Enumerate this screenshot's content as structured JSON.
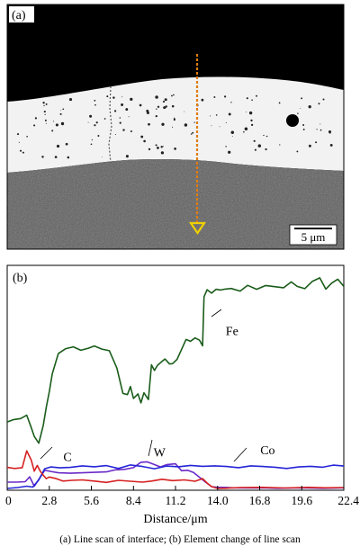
{
  "panel_a": {
    "label": "(a)",
    "scale_bar_label": "5 μm",
    "colors": {
      "line": "#e07c10",
      "marker": "#f0d000"
    }
  },
  "panel_b": {
    "label": "(b)"
  },
  "caption": "(a)   Line scan of interface; (b) Element change of line scan",
  "chart_data": {
    "type": "line",
    "xlabel": "Distance/μm",
    "ylabel": "",
    "xlim": [
      0,
      22.4
    ],
    "ylim": [
      0,
      100
    ],
    "x_ticks": [
      "0",
      "2.8",
      "5.6",
      "8.4",
      "11.2",
      "14.0",
      "16.8",
      "19.6",
      "22.4"
    ],
    "x_tick_values": [
      0,
      2.8,
      5.6,
      8.4,
      11.2,
      14.0,
      16.8,
      19.6,
      22.4
    ],
    "grid": false,
    "series": [
      {
        "name": "Fe",
        "color": "#1a5c1a",
        "label_at": [
          14.3,
          71.3
        ],
        "x": [
          0.0,
          0.4,
          0.9,
          1.3,
          1.6,
          1.8,
          2.1,
          2.4,
          2.6,
          2.8,
          3.0,
          3.4,
          3.9,
          4.4,
          4.9,
          5.4,
          5.8,
          6.3,
          6.8,
          7.3,
          7.7,
          8.0,
          8.2,
          8.4,
          8.7,
          8.9,
          9.1,
          9.4,
          9.6,
          9.8,
          10.0,
          10.3,
          10.5,
          10.8,
          11.0,
          11.3,
          11.6,
          11.9,
          12.2,
          12.5,
          12.8,
          13.0,
          13.1,
          13.3,
          13.6,
          13.9,
          14.2,
          14.5,
          14.9,
          15.5,
          16.0,
          16.6,
          17.2,
          17.8,
          18.4,
          18.9,
          19.3,
          19.8,
          20.3,
          20.8,
          21.2,
          21.6,
          22.0,
          22.4
        ],
        "y": [
          30.5,
          31.5,
          32,
          33.5,
          28,
          24,
          21,
          29,
          37,
          44,
          52,
          61,
          63.2,
          64,
          62.5,
          63.4,
          64.4,
          63,
          62.3,
          54.5,
          43.2,
          42.7,
          46.3,
          41,
          43,
          39,
          43.5,
          40.5,
          56,
          53.5,
          55.8,
          57.5,
          58.6,
          56.4,
          56.5,
          58.4,
          62.8,
          67.3,
          66.5,
          68,
          67,
          64.5,
          86.4,
          89.5,
          88,
          89.7,
          89.4,
          89.8,
          90.1,
          88.9,
          91.5,
          89.7,
          91.4,
          90.9,
          90.4,
          93,
          91,
          90,
          93.2,
          94.8,
          89.8,
          92.5,
          94.2,
          91
        ]
      },
      {
        "name": "W",
        "color": "#6a2ac8",
        "label_at": [
          9.5,
          17.1
        ],
        "x": [
          0.0,
          0.6,
          1.2,
          1.5,
          1.8,
          2.1,
          2.5,
          2.9,
          3.4,
          4.2,
          5.0,
          5.8,
          6.6,
          7.2,
          7.8,
          8.4,
          8.9,
          9.3,
          9.7,
          10.2,
          10.6,
          11.2,
          11.6,
          12.0,
          12.4,
          12.8,
          13.2,
          13.6,
          14.0,
          14.5,
          15.0,
          16.0,
          17.0,
          18.0,
          19.0,
          20.0,
          21.0,
          22.4
        ],
        "y": [
          3.6,
          3.6,
          3.8,
          6,
          1.8,
          4.8,
          8.9,
          8.4,
          7.8,
          7.6,
          7.8,
          8,
          8.2,
          9.1,
          9.3,
          10.1,
          12.5,
          12.7,
          11.7,
          10.4,
          11.4,
          11.8,
          8.7,
          8.9,
          7.9,
          5.8,
          3.6,
          1.6,
          1.3,
          1.3,
          1.1,
          1.0,
          1.1,
          0.9,
          1.0,
          1.0,
          0.9,
          1.1
        ]
      },
      {
        "name": "Co",
        "color": "#2424d8",
        "label_at": [
          16.6,
          18.0
        ],
        "x": [
          0.0,
          0.7,
          1.3,
          1.7,
          2.1,
          2.5,
          2.9,
          3.5,
          4.2,
          5.0,
          5.8,
          6.6,
          7.4,
          8.2,
          9.0,
          9.8,
          10.6,
          11.4,
          12.2,
          13.0,
          13.8,
          14.6,
          15.4,
          16.2,
          17.0,
          17.8,
          18.6,
          19.4,
          20.2,
          21.0,
          21.7,
          22.4
        ],
        "y": [
          0.8,
          1.2,
          1.8,
          1.4,
          4.6,
          9.6,
          10.4,
          10,
          10.2,
          10.9,
          10.5,
          11,
          9.7,
          11.3,
          10.6,
          9.6,
          10.8,
          10.5,
          11.1,
          10.7,
          10.9,
          10.6,
          10.1,
          10.9,
          10.6,
          10.3,
          9.7,
          10.4,
          10.7,
          10.3,
          11.2,
          10.8
        ]
      },
      {
        "name": "C",
        "color": "#d62020",
        "label_at": [
          3.5,
          15.0
        ],
        "x": [
          0.0,
          0.5,
          1.0,
          1.3,
          1.6,
          1.8,
          2.0,
          2.2,
          2.4,
          2.6,
          2.8,
          3.2,
          3.7,
          4.3,
          5.0,
          5.8,
          6.6,
          7.4,
          8.2,
          9.0,
          9.6,
          10.3,
          11.0,
          11.8,
          12.5,
          13.0,
          13.3,
          13.6,
          14.0,
          14.5,
          15.5,
          17.0,
          18.5,
          20.0,
          21.2,
          22.4
        ],
        "y": [
          10.2,
          9.7,
          10.1,
          17.6,
          13.5,
          8.5,
          11.1,
          8.5,
          6.7,
          5.2,
          5.9,
          5.3,
          4.1,
          4.4,
          4.6,
          4.1,
          3.5,
          4.4,
          4.0,
          3.6,
          4.1,
          4.9,
          4.3,
          4.6,
          4.0,
          5.2,
          3.2,
          1.6,
          0.8,
          0.9,
          1.2,
          1.3,
          1.0,
          1.3,
          1.1,
          1.2
        ]
      }
    ]
  }
}
